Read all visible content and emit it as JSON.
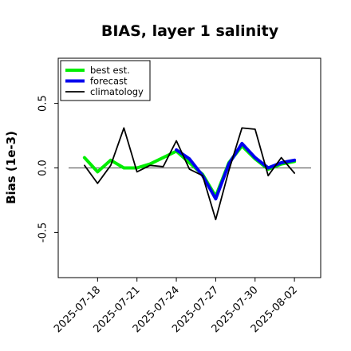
{
  "chart_data": {
    "type": "line",
    "title": "BIAS, layer 1 salinity",
    "xlabel": "",
    "ylabel": "Bias (1e-3)",
    "ylim": [
      -0.85,
      0.85
    ],
    "yticks": [
      -0.5,
      0.0,
      0.5
    ],
    "ytick_labels": [
      "-0.5",
      "0.0",
      "0.5"
    ],
    "xlim": [
      "2025-07-15",
      "2025-08-04"
    ],
    "xticks": [
      "2025-07-18",
      "2025-07-21",
      "2025-07-24",
      "2025-07-27",
      "2025-07-30",
      "2025-08-02"
    ],
    "highlight_tick": "2025-07-24",
    "highlight_color": "#228B22",
    "zero_line": true,
    "grid": false,
    "legend_position": "top-left",
    "series": [
      {
        "name": "best est.",
        "color": "#00ee00",
        "x": [
          "2025-07-17",
          "2025-07-18",
          "2025-07-19",
          "2025-07-20",
          "2025-07-21",
          "2025-07-22",
          "2025-07-23",
          "2025-07-24",
          "2025-07-25",
          "2025-07-26",
          "2025-07-27",
          "2025-07-28",
          "2025-07-29",
          "2025-07-30",
          "2025-07-31",
          "2025-08-01",
          "2025-08-02"
        ],
        "values": [
          0.08,
          -0.03,
          0.06,
          0.0,
          0.0,
          0.03,
          0.08,
          0.13,
          0.04,
          -0.05,
          -0.22,
          0.04,
          0.17,
          0.07,
          -0.01,
          0.03,
          0.05
        ]
      },
      {
        "name": "forecast",
        "color": "#0000ee",
        "x": [
          "2025-07-17",
          "2025-07-18",
          "2025-07-19",
          "2025-07-20",
          "2025-07-21",
          "2025-07-22",
          "2025-07-23",
          "2025-07-24",
          "2025-07-25",
          "2025-07-26",
          "2025-07-27",
          "2025-07-28",
          "2025-07-29",
          "2025-07-30",
          "2025-07-31",
          "2025-08-01",
          "2025-08-02"
        ],
        "values": [
          null,
          null,
          null,
          null,
          null,
          null,
          null,
          0.14,
          0.07,
          -0.06,
          -0.24,
          0.03,
          0.19,
          0.08,
          0.0,
          0.04,
          0.06
        ]
      },
      {
        "name": "climatology",
        "color": "#000000",
        "x": [
          "2025-07-17",
          "2025-07-18",
          "2025-07-19",
          "2025-07-20",
          "2025-07-21",
          "2025-07-22",
          "2025-07-23",
          "2025-07-24",
          "2025-07-25",
          "2025-07-26",
          "2025-07-27",
          "2025-07-28",
          "2025-07-29",
          "2025-07-30",
          "2025-07-31",
          "2025-08-01",
          "2025-08-02"
        ],
        "values": [
          0.02,
          -0.12,
          0.02,
          0.31,
          -0.03,
          0.02,
          0.01,
          0.21,
          -0.01,
          -0.06,
          -0.4,
          -0.02,
          0.31,
          0.3,
          -0.06,
          0.08,
          -0.04
        ]
      }
    ]
  }
}
